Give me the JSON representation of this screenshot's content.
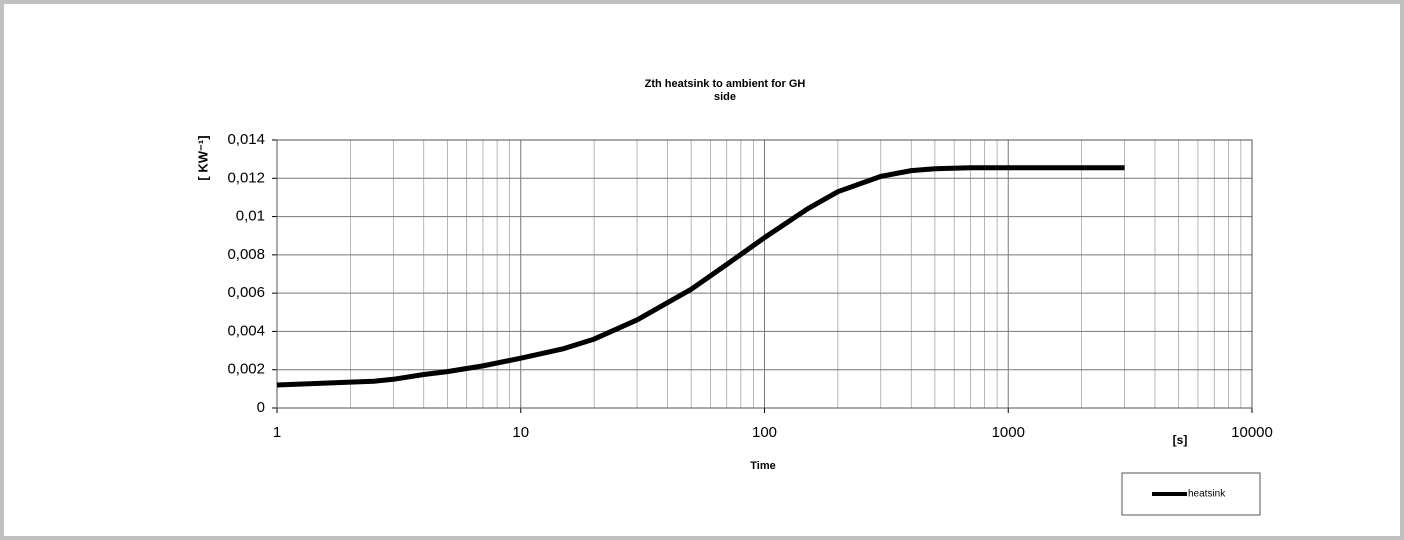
{
  "chart_data": {
    "type": "line",
    "title": [
      "Zth heatsink to ambient for GH",
      "side"
    ],
    "ylabel": "[ KW⁻¹]",
    "xlabel": "Time",
    "annotations": [
      "[s]"
    ],
    "x": [
      1,
      2,
      2.5,
      3,
      4,
      5,
      7,
      10,
      15,
      20,
      30,
      40,
      50,
      70,
      100,
      150,
      200,
      300,
      400,
      500,
      700,
      1000,
      2000,
      3000
    ],
    "series": [
      {
        "name": "heatsink",
        "color": "#000000",
        "values": [
          0.0012,
          0.00135,
          0.0014,
          0.0015,
          0.00175,
          0.0019,
          0.0022,
          0.0026,
          0.0031,
          0.0036,
          0.0046,
          0.0055,
          0.0062,
          0.0075,
          0.0089,
          0.0104,
          0.0113,
          0.0121,
          0.0124,
          0.0125,
          0.01255,
          0.01255,
          0.01255,
          0.01255
        ]
      }
    ],
    "xlog": true,
    "xlim": [
      1,
      10000
    ],
    "xticks": [
      1,
      10,
      100,
      1000,
      10000
    ],
    "xminorticks": [
      2,
      3,
      4,
      5,
      6,
      7,
      8,
      9,
      20,
      30,
      40,
      50,
      60,
      70,
      80,
      90,
      200,
      300,
      400,
      500,
      600,
      700,
      800,
      900,
      2000,
      3000,
      4000,
      5000,
      6000,
      7000,
      8000,
      9000
    ],
    "ylim": [
      0,
      0.014
    ],
    "yticks": [
      0,
      {
        "value": 0.002,
        "label": "0,002"
      },
      {
        "value": 0.004,
        "label": "0,004"
      },
      {
        "value": 0.006,
        "label": "0,006"
      },
      {
        "value": 0.008,
        "label": "0,008"
      },
      {
        "value": 0.01,
        "label": "0,01"
      },
      {
        "value": 0.012,
        "label": "0,012"
      },
      {
        "value": 0.014,
        "label": "0,014"
      }
    ],
    "grid": true,
    "legend": "lower right"
  }
}
